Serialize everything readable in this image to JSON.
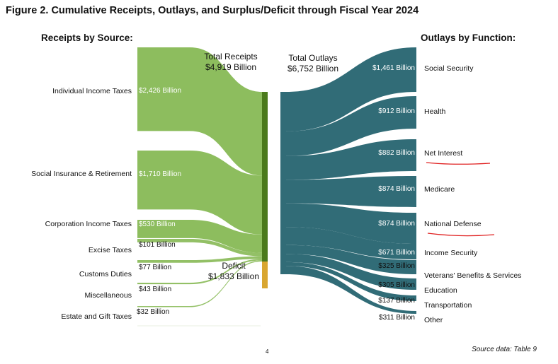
{
  "title": "Figure 2. Cumulative Receipts, Outlays, and Surplus/Deficit through Fiscal Year 2024",
  "receipts_header": "Receipts by Source:",
  "outlays_header": "Outlays by Function:",
  "total_receipts": {
    "label": "Total Receipts",
    "value": "$4,919 Billion",
    "amount": 4919
  },
  "total_outlays": {
    "label": "Total Outlays",
    "value": "$6,752 Billion",
    "amount": 6752
  },
  "deficit": {
    "label": "Deficit",
    "value": "$1,833 Billion",
    "amount": 1833
  },
  "receipts": [
    {
      "name": "Individual Income Taxes",
      "value": "$2,426 Billion",
      "amount": 2426
    },
    {
      "name": "Social Insurance & Retirement",
      "value": "$1,710 Billion",
      "amount": 1710
    },
    {
      "name": "Corporation Income Taxes",
      "value": "$530 Billion",
      "amount": 530
    },
    {
      "name": "Excise Taxes",
      "value": "$101 Billion",
      "amount": 101
    },
    {
      "name": "Customs Duties",
      "value": "$77 Billion",
      "amount": 77
    },
    {
      "name": "Miscellaneous",
      "value": "$43 Billion",
      "amount": 43
    },
    {
      "name": "Estate and Gift Taxes",
      "value": "$32 Billion",
      "amount": 32
    }
  ],
  "outlays": [
    {
      "name": "Social Security",
      "value": "$1,461 Billion",
      "amount": 1461
    },
    {
      "name": "Health",
      "value": "$912 Billion",
      "amount": 912
    },
    {
      "name": "Net Interest",
      "value": "$882 Billion",
      "amount": 882
    },
    {
      "name": "Medicare",
      "value": "$874 Billion",
      "amount": 874
    },
    {
      "name": "National Defense",
      "value": "$874 Billion",
      "amount": 874
    },
    {
      "name": "Income Security",
      "value": "$671 Billion",
      "amount": 671
    },
    {
      "name": "Veterans' Benefits & Services",
      "value": "$325 Billion",
      "amount": 325
    },
    {
      "name": "Education",
      "value": "$305 Billion",
      "amount": 305
    },
    {
      "name": "Transportation",
      "value": "$137 Billion",
      "amount": 137
    },
    {
      "name": "Other",
      "value": "$311 Billion",
      "amount": 311
    }
  ],
  "source_note": "Source data: Table 9",
  "page_number": "4",
  "colors": {
    "receipts": "#8dbd5e",
    "receipts_bar": "#4b7a1c",
    "deficit": "#d9a630",
    "outlays": "#316c77",
    "annotation": "#e02020"
  }
}
